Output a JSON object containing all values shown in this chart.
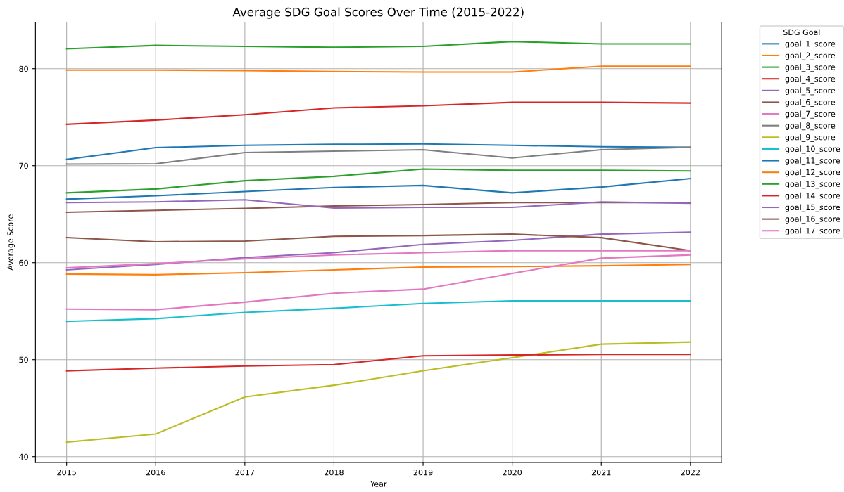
{
  "chart_data": {
    "type": "line",
    "title": "Average SDG Goal Scores Over Time (2015-2022)",
    "xlabel": "Year",
    "ylabel": "Average Score",
    "legend_title": "SDG Goal",
    "legend": "top right",
    "grid": true,
    "x": [
      2015,
      2016,
      2017,
      2018,
      2019,
      2020,
      2021,
      2022
    ],
    "xlim": [
      2014.65,
      2022.35
    ],
    "xticks": [
      2015,
      2016,
      2017,
      2018,
      2019,
      2020,
      2021,
      2022
    ],
    "ylim": [
      39.4,
      84.8
    ],
    "yticks": [
      40,
      50,
      60,
      70,
      80
    ],
    "series": [
      {
        "name": "goal_1_score",
        "color": "#1f77b4",
        "values": [
          70.65,
          71.86,
          72.1,
          72.2,
          72.25,
          72.1,
          71.95,
          71.9
        ]
      },
      {
        "name": "goal_2_score",
        "color": "#ff7f0e",
        "values": [
          58.83,
          58.76,
          58.97,
          59.26,
          59.54,
          59.6,
          59.68,
          59.82
        ]
      },
      {
        "name": "goal_3_score",
        "color": "#2ca02c",
        "values": [
          67.2,
          67.6,
          68.45,
          68.9,
          69.66,
          69.52,
          69.52,
          69.45
        ]
      },
      {
        "name": "goal_4_score",
        "color": "#d62728",
        "values": [
          74.27,
          74.7,
          75.25,
          75.96,
          76.18,
          76.53,
          76.53,
          76.46
        ]
      },
      {
        "name": "goal_5_score",
        "color": "#9467bd",
        "values": [
          59.26,
          59.82,
          60.53,
          61.03,
          61.88,
          62.3,
          62.94,
          63.15
        ]
      },
      {
        "name": "goal_6_score",
        "color": "#8c564b",
        "values": [
          65.2,
          65.4,
          65.6,
          65.85,
          66.0,
          66.2,
          66.2,
          66.2
        ]
      },
      {
        "name": "goal_7_score",
        "color": "#e377c2",
        "values": [
          55.22,
          55.15,
          55.93,
          56.85,
          57.27,
          58.9,
          60.46,
          60.8
        ]
      },
      {
        "name": "goal_8_score",
        "color": "#7f7f7f",
        "values": [
          70.16,
          70.2,
          71.36,
          71.5,
          71.65,
          70.8,
          71.65,
          71.9
        ]
      },
      {
        "name": "goal_9_score",
        "color": "#bcbd22",
        "values": [
          41.49,
          42.34,
          46.16,
          47.36,
          48.85,
          50.2,
          51.6,
          51.82
        ]
      },
      {
        "name": "goal_10_score",
        "color": "#17becf",
        "values": [
          53.95,
          54.23,
          54.87,
          55.3,
          55.79,
          56.07,
          56.07,
          56.07
        ]
      },
      {
        "name": "goal_11_score",
        "color": "#1f77b4",
        "values": [
          66.55,
          66.9,
          67.33,
          67.75,
          67.96,
          67.2,
          67.8,
          68.67
        ]
      },
      {
        "name": "goal_12_score",
        "color": "#ff7f0e",
        "values": [
          79.86,
          79.86,
          79.8,
          79.7,
          79.65,
          79.65,
          80.25,
          80.25
        ]
      },
      {
        "name": "goal_13_score",
        "color": "#2ca02c",
        "values": [
          82.05,
          82.4,
          82.3,
          82.2,
          82.3,
          82.8,
          82.55,
          82.55
        ]
      },
      {
        "name": "goal_14_score",
        "color": "#d62728",
        "values": [
          48.85,
          49.13,
          49.35,
          49.49,
          50.4,
          50.48,
          50.55,
          50.55
        ]
      },
      {
        "name": "goal_15_score",
        "color": "#9467bd",
        "values": [
          66.2,
          66.27,
          66.48,
          65.63,
          65.7,
          65.7,
          66.27,
          66.12
        ]
      },
      {
        "name": "goal_16_score",
        "color": "#8c564b",
        "values": [
          62.58,
          62.16,
          62.23,
          62.72,
          62.8,
          62.94,
          62.58,
          61.24
        ]
      },
      {
        "name": "goal_17_score",
        "color": "#e377c2",
        "values": [
          59.47,
          59.9,
          60.4,
          60.8,
          61.03,
          61.24,
          61.24,
          61.24
        ]
      }
    ]
  }
}
